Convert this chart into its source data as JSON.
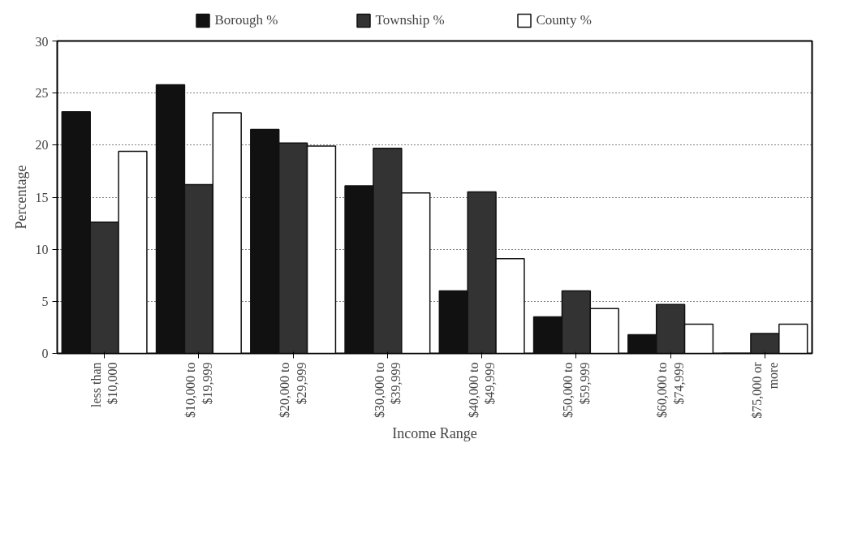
{
  "chart_data": {
    "type": "bar",
    "xlabel": "Income Range",
    "ylabel": "Percentage",
    "categories": [
      "less than\n$10,000",
      "$10,000 to\n$19,999",
      "$20,000 to\n$29,999",
      "$30,000 to\n$39,999",
      "$40,000 to\n$49,999",
      "$50,000 to\n$59,999",
      "$60,000 to\n$74,999",
      "$75,000 or\nmore"
    ],
    "series": [
      {
        "name": "Borough %",
        "color": "#111111",
        "values": [
          23.2,
          25.8,
          21.5,
          16.1,
          6.0,
          3.5,
          1.8,
          0
        ]
      },
      {
        "name": "Township %",
        "color": "#333333",
        "values": [
          12.6,
          16.2,
          20.2,
          19.7,
          15.5,
          6.0,
          4.7,
          1.9
        ]
      },
      {
        "name": "County %",
        "color": "#ffffff",
        "values": [
          19.4,
          23.1,
          19.9,
          15.4,
          9.1,
          4.3,
          2.8,
          2.8
        ]
      }
    ],
    "ylim": [
      0,
      30
    ],
    "yticks": [
      0,
      5,
      10,
      15,
      20,
      25,
      30
    ],
    "grid": "y",
    "legend": "top"
  }
}
